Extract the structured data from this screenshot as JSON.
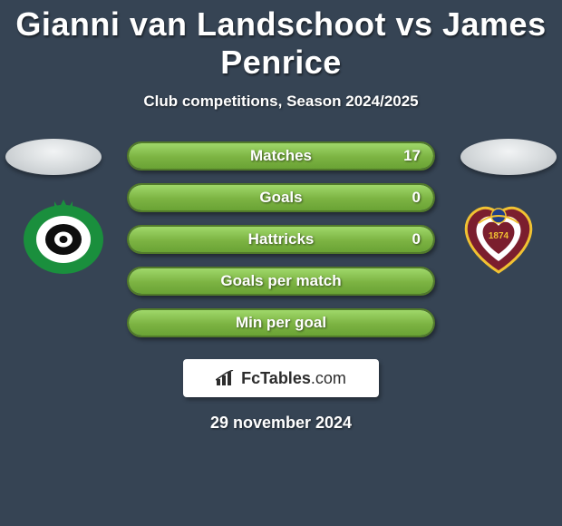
{
  "title": "Gianni van Landschoot vs James Penrice",
  "subtitle": "Club competitions, Season 2024/2025",
  "date": "29 november 2024",
  "colors": {
    "background": "#364454",
    "bar_border": "#527b2a",
    "bar_fill_top": "#9fd86a",
    "bar_fill_bottom": "#6aa335",
    "text": "#ffffff"
  },
  "bars": [
    {
      "label": "Matches",
      "value": "17",
      "fill_pct": 100
    },
    {
      "label": "Goals",
      "value": "0",
      "fill_pct": 100
    },
    {
      "label": "Hattricks",
      "value": "0",
      "fill_pct": 100
    },
    {
      "label": "Goals per match",
      "value": "",
      "fill_pct": 100
    },
    {
      "label": "Min per goal",
      "value": "",
      "fill_pct": 100
    }
  ],
  "left_club": {
    "name": "Cercle Brugge",
    "badge_colors": {
      "ring": "#1a8f3d",
      "black": "#0e0e0e",
      "white": "#ffffff",
      "crown": "#1a8f3d"
    }
  },
  "right_club": {
    "name": "Heart of Midlothian",
    "badge_colors": {
      "maroon": "#7b1e2e",
      "yellow": "#f1c232",
      "blue": "#1f3f88",
      "white": "#ffffff"
    }
  },
  "brand": {
    "name": "FcTables",
    "suffix": ".com"
  }
}
